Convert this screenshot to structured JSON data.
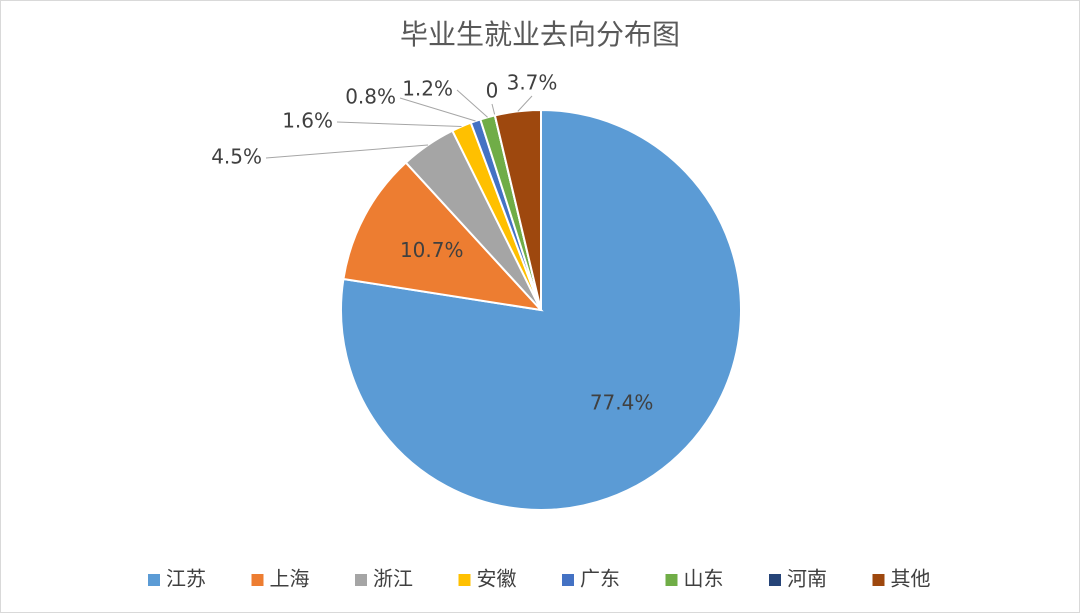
{
  "chart_data": {
    "type": "pie",
    "title": "毕业生就业去向分布图",
    "categories": [
      "江苏",
      "上海",
      "浙江",
      "安徽",
      "广东",
      "山东",
      "河南",
      "其他"
    ],
    "values": [
      77.4,
      10.7,
      4.5,
      1.6,
      0.8,
      1.2,
      0,
      3.7
    ],
    "value_labels": [
      "77.4%",
      "10.7%",
      "4.5%",
      "1.6%",
      "0.8%",
      "1.2%",
      "0",
      "3.7%"
    ],
    "colors": [
      "#5b9bd5",
      "#ed7d31",
      "#a5a5a5",
      "#ffc000",
      "#4472c4",
      "#70ad47",
      "#264478",
      "#9e480e"
    ],
    "legend": "bottom"
  }
}
